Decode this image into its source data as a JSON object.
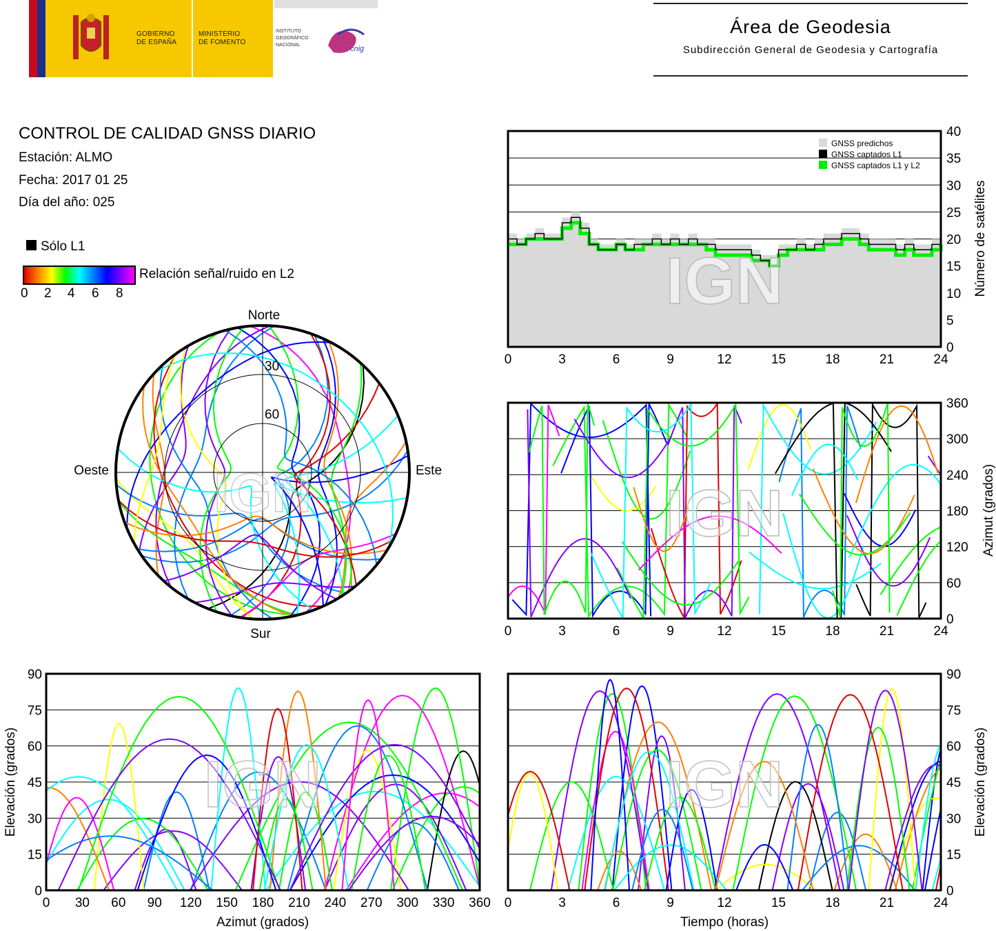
{
  "header": {
    "gov_line1": "GOBIERNO",
    "gov_line2": "DE ESPAÑA",
    "min_line1": "MINISTERIO",
    "min_line2": "DE FOMENTO",
    "inst_line1": "INSTITUTO",
    "inst_line2": "GEOGRÁFICO",
    "inst_line3": "NACIONAL",
    "cnig": "cnig",
    "area_title": "Área de Geodesia",
    "area_subtitle": "Subdirección General de Geodesia y Cartografía"
  },
  "info": {
    "title": "CONTROL DE CALIDAD GNSS DIARIO",
    "station": "Estación: ALMO",
    "date": "Fecha: 2017 01 25",
    "doy": "Día del año: 025"
  },
  "legend": {
    "l1_only": "Sólo L1",
    "snr_label": "Relación señal/ruido en L2",
    "snr_ticks": [
      "0",
      "2",
      "4",
      "6",
      "8"
    ]
  },
  "watermark": "IGN",
  "colors": {
    "predicted": "#d9d9d9",
    "l1": "#000000",
    "l1l2": "#00ee00",
    "snr_scale": [
      "#e00000",
      "#ff8000",
      "#ffff00",
      "#00ff00",
      "#00ffff",
      "#0080ff",
      "#0000ff",
      "#8000ff",
      "#ff00ff"
    ]
  },
  "chart_data": [
    {
      "type": "line",
      "name": "satellite-count",
      "ylabel": "Número de satélites",
      "xlim": [
        0,
        24
      ],
      "ylim": [
        0,
        40
      ],
      "xticks": [
        "0",
        "3",
        "6",
        "9",
        "12",
        "15",
        "18",
        "21",
        "24"
      ],
      "yticks": [
        "0",
        "5",
        "10",
        "15",
        "20",
        "25",
        "30",
        "35",
        "40"
      ],
      "grid": true,
      "legend": [
        "GNSS predichos",
        "GNSS captados L1",
        "GNSS captados L1 y L2"
      ],
      "legend_position": "top-right",
      "x": [
        0,
        0.5,
        1,
        1.5,
        2,
        2.5,
        3,
        3.5,
        4,
        4.5,
        5,
        5.5,
        6,
        6.5,
        7,
        7.5,
        8,
        8.5,
        9,
        9.5,
        10,
        10.5,
        11,
        11.5,
        12,
        12.5,
        13,
        13.5,
        14,
        14.5,
        15,
        15.5,
        16,
        16.5,
        17,
        17.5,
        18,
        18.5,
        19,
        19.5,
        20,
        20.5,
        21,
        21.5,
        22,
        22.5,
        23,
        23.5,
        24
      ],
      "series": [
        {
          "name": "GNSS predichos",
          "values": [
            21,
            20,
            21,
            22,
            21,
            21,
            24,
            25,
            23,
            20,
            19,
            19,
            20,
            19,
            20,
            20,
            21,
            20,
            21,
            20,
            21,
            20,
            20,
            19,
            19,
            19,
            19,
            18,
            17,
            17,
            19,
            19,
            20,
            19,
            20,
            21,
            21,
            22,
            22,
            21,
            20,
            20,
            20,
            19,
            20,
            19,
            19,
            20,
            21
          ]
        },
        {
          "name": "GNSS captados L1",
          "values": [
            20,
            19,
            20,
            21,
            20,
            20,
            23,
            24,
            22,
            19,
            18,
            18,
            19,
            18,
            19,
            19,
            20,
            19,
            20,
            19,
            20,
            19,
            19,
            18,
            18,
            18,
            18,
            17,
            16,
            15,
            18,
            18,
            19,
            18,
            19,
            20,
            20,
            21,
            21,
            20,
            19,
            19,
            19,
            18,
            19,
            18,
            18,
            19,
            20
          ]
        },
        {
          "name": "GNSS captados L1 y L2",
          "values": [
            19,
            19,
            20,
            20,
            20,
            20,
            22,
            23,
            21,
            19,
            18,
            18,
            19,
            18,
            18,
            19,
            19,
            19,
            19,
            19,
            19,
            19,
            18,
            17,
            17,
            17,
            17,
            16,
            16,
            15,
            17,
            18,
            18,
            18,
            18,
            19,
            19,
            20,
            20,
            19,
            18,
            18,
            18,
            17,
            18,
            17,
            17,
            18,
            19
          ]
        }
      ]
    },
    {
      "type": "scatter",
      "name": "azimuth-vs-time",
      "ylabel": "Azimut (grados)",
      "xlim": [
        0,
        24
      ],
      "ylim": [
        0,
        360
      ],
      "xticks": [
        "0",
        "3",
        "6",
        "9",
        "12",
        "15",
        "18",
        "21",
        "24"
      ],
      "yticks": [
        "0",
        "60",
        "120",
        "180",
        "240",
        "300",
        "360"
      ],
      "grid": true
    },
    {
      "type": "scatter",
      "name": "skyplot",
      "labels": {
        "north": "Norte",
        "south": "Sur",
        "west": "Oeste",
        "east": "Este"
      },
      "rings": [
        "30",
        "60"
      ]
    },
    {
      "type": "scatter",
      "name": "elevation-vs-azimuth",
      "xlabel": "Azimut (grados)",
      "ylabel": "Elevación (grados)",
      "xlim": [
        0,
        360
      ],
      "ylim": [
        0,
        90
      ],
      "xticks": [
        "0",
        "30",
        "60",
        "90",
        "120",
        "150",
        "180",
        "210",
        "240",
        "270",
        "300",
        "330",
        "360"
      ],
      "yticks": [
        "0",
        "15",
        "30",
        "45",
        "60",
        "75",
        "90"
      ],
      "grid": true
    },
    {
      "type": "scatter",
      "name": "elevation-vs-time",
      "xlabel": "Tiempo (horas)",
      "ylabel": "Elevación (grados)",
      "xlim": [
        0,
        24
      ],
      "ylim": [
        0,
        90
      ],
      "xticks": [
        "0",
        "3",
        "6",
        "9",
        "12",
        "15",
        "18",
        "21",
        "24"
      ],
      "yticks": [
        "0",
        "15",
        "30",
        "45",
        "60",
        "75",
        "90"
      ],
      "grid": true
    }
  ]
}
